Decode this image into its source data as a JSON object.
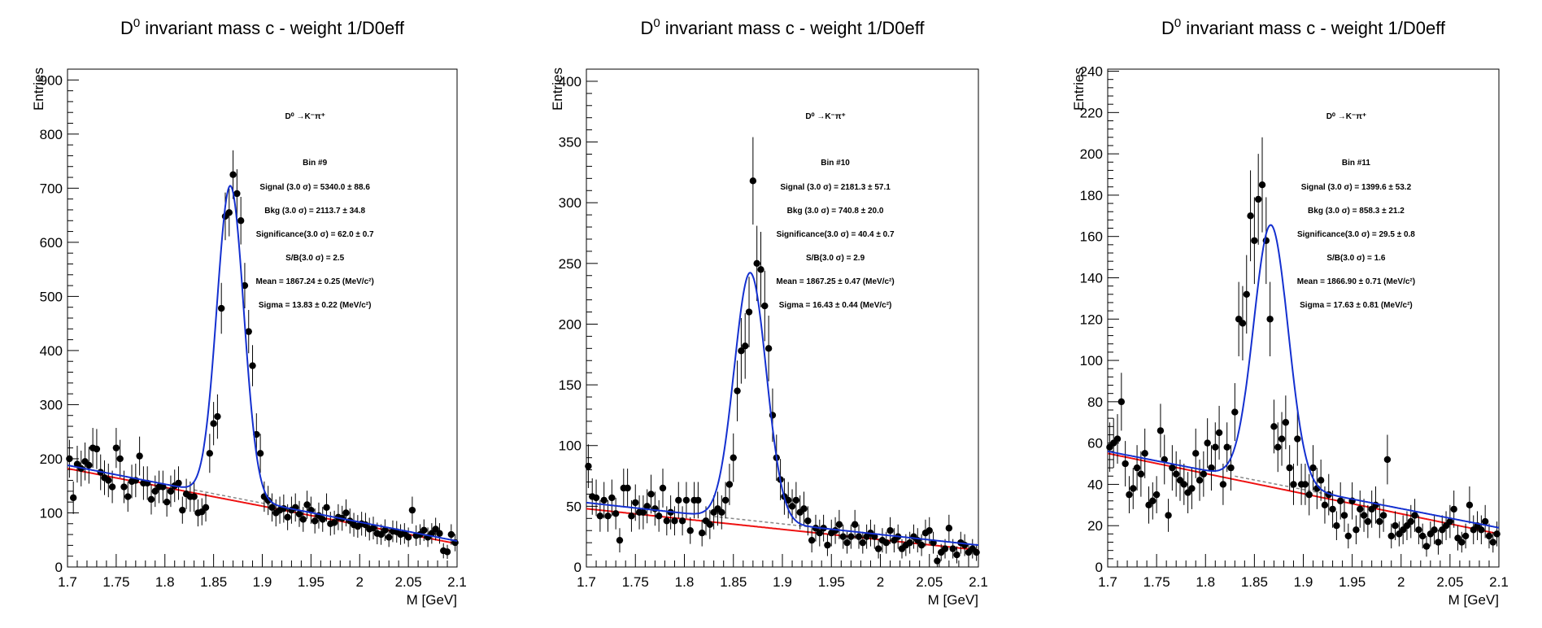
{
  "chart_data": [
    {
      "type": "scatter",
      "title": "D0 invariant mass c - weight 1/D0eff",
      "title_parts": {
        "base": "D",
        "sup": "0",
        "rest": " invariant mass c - weight 1/D0eff"
      },
      "xlabel": "M [GeV]",
      "ylabel": "Entries",
      "xlim": [
        1.7,
        2.1
      ],
      "ylim": [
        0,
        920
      ],
      "xticks": [
        1.7,
        1.75,
        1.8,
        1.85,
        1.9,
        1.95,
        2.0,
        2.05,
        2.1
      ],
      "xtick_labels": [
        "1.7",
        "1.75",
        "1.8",
        "1.85",
        "1.9",
        "1.95",
        "2",
        "2.05",
        "2.1"
      ],
      "yticks": [
        0,
        100,
        200,
        300,
        400,
        500,
        600,
        700,
        800,
        900
      ],
      "ytick_labels": [
        "0",
        "100",
        "200",
        "300",
        "400",
        "500",
        "600",
        "700",
        "800",
        "900"
      ],
      "annotations": {
        "decay": "D⁰ →K⁻π⁺",
        "bin": "Bin #9",
        "signal": "Signal (3.0 σ) =  5340.0 ± 88.6",
        "bkg": "Bkg (3.0 σ) =  2113.7 ± 34.8",
        "significance": "Significance(3.0 σ) =  62.0 ± 0.7",
        "sb": "S/B(3.0 σ) =  2.5",
        "mean": "Mean = 1867.24 ± 0.25 (MeV/c²)",
        "sigma": "Sigma = 13.83 ± 0.22 (MeV/c²)"
      },
      "fit": {
        "mean": 1.86724,
        "sigma": 0.01383,
        "amp": 575,
        "bkg_a": 182,
        "bkg_b": 43,
        "bkg_full_a": 188,
        "bkg_full_b": 48
      },
      "x": [
        1.702,
        1.706,
        1.71,
        1.714,
        1.718,
        1.722,
        1.726,
        1.73,
        1.734,
        1.738,
        1.742,
        1.746,
        1.75,
        1.754,
        1.758,
        1.762,
        1.766,
        1.77,
        1.774,
        1.778,
        1.782,
        1.786,
        1.79,
        1.794,
        1.798,
        1.802,
        1.806,
        1.81,
        1.814,
        1.818,
        1.822,
        1.826,
        1.83,
        1.834,
        1.838,
        1.842,
        1.846,
        1.85,
        1.854,
        1.858,
        1.862,
        1.866,
        1.87,
        1.874,
        1.878,
        1.882,
        1.886,
        1.89,
        1.894,
        1.898,
        1.902,
        1.906,
        1.91,
        1.914,
        1.918,
        1.922,
        1.926,
        1.93,
        1.934,
        1.938,
        1.942,
        1.946,
        1.95,
        1.954,
        1.958,
        1.962,
        1.966,
        1.97,
        1.974,
        1.978,
        1.982,
        1.986,
        1.99,
        1.994,
        1.998,
        2.002,
        2.006,
        2.01,
        2.014,
        2.018,
        2.022,
        2.026,
        2.03,
        2.034,
        2.038,
        2.042,
        2.046,
        2.05,
        2.054,
        2.058,
        2.062,
        2.066,
        2.07,
        2.074,
        2.078,
        2.082,
        2.086,
        2.09,
        2.094,
        2.098
      ],
      "y": [
        200,
        128,
        190,
        182,
        195,
        188,
        220,
        218,
        175,
        165,
        160,
        148,
        220,
        200,
        148,
        130,
        158,
        160,
        205,
        155,
        155,
        125,
        140,
        148,
        148,
        120,
        140,
        150,
        155,
        105,
        135,
        130,
        130,
        100,
        102,
        110,
        210,
        265,
        278,
        478,
        648,
        655,
        725,
        690,
        640,
        520,
        435,
        372,
        245,
        210,
        130,
        123,
        110,
        100,
        105,
        108,
        92,
        105,
        110,
        98,
        88,
        115,
        105,
        85,
        95,
        88,
        110,
        80,
        82,
        92,
        90,
        100,
        85,
        78,
        75,
        80,
        78,
        70,
        72,
        62,
        60,
        68,
        55,
        66,
        65,
        60,
        62,
        55,
        105,
        58,
        60,
        68,
        55,
        62,
        70,
        62,
        30,
        28,
        60,
        45
      ],
      "yerr": [
        35,
        30,
        34,
        33,
        35,
        34,
        37,
        37,
        33,
        32,
        31,
        30,
        37,
        35,
        30,
        28,
        31,
        31,
        36,
        31,
        31,
        28,
        29,
        30,
        30,
        27,
        29,
        30,
        31,
        25,
        28,
        28,
        28,
        25,
        25,
        26,
        36,
        40,
        41,
        47,
        44,
        44,
        45,
        45,
        44,
        42,
        40,
        38,
        39,
        36,
        28,
        27,
        26,
        25,
        25,
        26,
        24,
        25,
        26,
        24,
        23,
        26,
        25,
        23,
        24,
        23,
        26,
        22,
        22,
        24,
        23,
        25,
        23,
        22,
        21,
        22,
        22,
        21,
        21,
        20,
        19,
        20,
        18,
        20,
        20,
        19,
        19,
        18,
        25,
        19,
        19,
        20,
        18,
        19,
        21,
        19,
        14,
        13,
        19,
        16
      ]
    },
    {
      "type": "scatter",
      "title": "D0 invariant mass c - weight 1/D0eff",
      "title_parts": {
        "base": "D",
        "sup": "0",
        "rest": " invariant mass c - weight 1/D0eff"
      },
      "xlabel": "M [GeV]",
      "ylabel": "Entries",
      "xlim": [
        1.7,
        2.1
      ],
      "ylim": [
        0,
        410
      ],
      "xticks": [
        1.7,
        1.75,
        1.8,
        1.85,
        1.9,
        1.95,
        2.0,
        2.05,
        2.1
      ],
      "xtick_labels": [
        "1.7",
        "1.75",
        "1.8",
        "1.85",
        "1.9",
        "1.95",
        "2",
        "2.05",
        "2.1"
      ],
      "yticks": [
        0,
        50,
        100,
        150,
        200,
        250,
        300,
        350,
        400
      ],
      "ytick_labels": [
        "0",
        "50",
        "100",
        "150",
        "200",
        "250",
        "300",
        "350",
        "400"
      ],
      "annotations": {
        "decay": "D⁰ →K⁻π⁺",
        "bin": "Bin #10",
        "signal": "Signal (3.0 σ) =  2181.3 ± 57.1",
        "bkg": "Bkg (3.0 σ) =  740.8 ± 20.0",
        "significance": "Significance(3.0 σ) =  40.4 ± 0.7",
        "sb": "S/B(3.0 σ) =  2.9",
        "mean": "Mean = 1867.25 ± 0.47 (MeV/c²)",
        "sigma": "Sigma = 16.43 ± 0.44 (MeV/c²)"
      },
      "fit": {
        "mean": 1.86725,
        "sigma": 0.01643,
        "amp": 204,
        "bkg_a": 48,
        "bkg_b": 14,
        "bkg_full_a": 53,
        "bkg_full_b": 18
      },
      "x": [
        1.702,
        1.706,
        1.71,
        1.714,
        1.718,
        1.722,
        1.726,
        1.73,
        1.734,
        1.738,
        1.742,
        1.746,
        1.75,
        1.754,
        1.758,
        1.762,
        1.766,
        1.77,
        1.774,
        1.778,
        1.782,
        1.786,
        1.79,
        1.794,
        1.798,
        1.802,
        1.806,
        1.81,
        1.814,
        1.818,
        1.822,
        1.826,
        1.83,
        1.834,
        1.838,
        1.842,
        1.846,
        1.85,
        1.854,
        1.858,
        1.862,
        1.866,
        1.87,
        1.874,
        1.878,
        1.882,
        1.886,
        1.89,
        1.894,
        1.898,
        1.902,
        1.906,
        1.91,
        1.914,
        1.918,
        1.922,
        1.926,
        1.93,
        1.934,
        1.938,
        1.942,
        1.946,
        1.95,
        1.954,
        1.958,
        1.962,
        1.966,
        1.97,
        1.974,
        1.978,
        1.982,
        1.986,
        1.99,
        1.994,
        1.998,
        2.002,
        2.006,
        2.01,
        2.014,
        2.018,
        2.022,
        2.026,
        2.03,
        2.034,
        2.038,
        2.042,
        2.046,
        2.05,
        2.054,
        2.058,
        2.062,
        2.066,
        2.07,
        2.074,
        2.078,
        2.082,
        2.086,
        2.09,
        2.094,
        2.098
      ],
      "y": [
        83,
        58,
        57,
        42,
        55,
        42,
        57,
        44,
        22,
        65,
        65,
        42,
        53,
        45,
        45,
        50,
        60,
        48,
        42,
        65,
        38,
        45,
        38,
        55,
        38,
        55,
        30,
        55,
        55,
        28,
        38,
        35,
        45,
        48,
        45,
        55,
        68,
        90,
        145,
        178,
        182,
        210,
        318,
        250,
        245,
        215,
        180,
        125,
        90,
        72,
        58,
        55,
        50,
        55,
        45,
        48,
        38,
        22,
        32,
        28,
        32,
        18,
        28,
        30,
        35,
        25,
        20,
        25,
        35,
        25,
        20,
        25,
        28,
        25,
        15,
        22,
        20,
        30,
        22,
        25,
        15,
        18,
        20,
        25,
        22,
        18,
        28,
        30,
        20,
        5,
        12,
        15,
        32,
        15,
        10,
        20,
        18,
        12,
        15,
        12
      ],
      "yerr": [
        18,
        15,
        15,
        13,
        15,
        13,
        15,
        13,
        10,
        16,
        16,
        13,
        15,
        14,
        14,
        14,
        16,
        14,
        13,
        16,
        12,
        14,
        12,
        15,
        12,
        15,
        11,
        15,
        15,
        11,
        12,
        12,
        14,
        14,
        14,
        15,
        17,
        20,
        25,
        27,
        27,
        29,
        36,
        31,
        31,
        29,
        27,
        22,
        19,
        17,
        15,
        15,
        14,
        15,
        14,
        14,
        12,
        10,
        11,
        11,
        11,
        9,
        11,
        11,
        12,
        10,
        9,
        10,
        12,
        10,
        9,
        10,
        11,
        10,
        8,
        10,
        9,
        11,
        10,
        10,
        8,
        9,
        9,
        10,
        10,
        9,
        11,
        11,
        9,
        5,
        7,
        8,
        11,
        8,
        7,
        9,
        9,
        7,
        8,
        7
      ]
    },
    {
      "type": "scatter",
      "title": "D0 invariant mass c - weight 1/D0eff",
      "title_parts": {
        "base": "D",
        "sup": "0",
        "rest": " invariant mass c - weight 1/D0eff"
      },
      "xlabel": "M [GeV]",
      "ylabel": "Entries",
      "xlim": [
        1.7,
        2.1
      ],
      "ylim": [
        0,
        241
      ],
      "xticks": [
        1.7,
        1.75,
        1.8,
        1.85,
        1.9,
        1.95,
        2.0,
        2.05,
        2.1
      ],
      "xtick_labels": [
        "1.7",
        "1.75",
        "1.8",
        "1.85",
        "1.9",
        "1.95",
        "2",
        "2.05",
        "2.1"
      ],
      "yticks": [
        0,
        20,
        40,
        60,
        80,
        100,
        120,
        140,
        160,
        180,
        200,
        220,
        240
      ],
      "ytick_labels": [
        "0",
        "20",
        "40",
        "60",
        "80",
        "100",
        "120",
        "140",
        "160",
        "180",
        "200",
        "220",
        "240"
      ],
      "annotations": {
        "decay": "D⁰ →K⁻π⁺",
        "bin": "Bin #11",
        "signal": "Signal (3.0 σ) =  1399.6 ± 53.2",
        "bkg": "Bkg (3.0 σ) =  858.3 ± 21.2",
        "significance": "Significance(3.0 σ) =  29.5 ± 0.8",
        "sb": "S/B(3.0 σ) =  1.6",
        "mean": "Mean = 1866.90 ± 0.71 (MeV/c²)",
        "sigma": "Sigma = 17.63 ± 0.81 (MeV/c²)"
      },
      "fit": {
        "mean": 1.8669,
        "sigma": 0.01763,
        "amp": 125,
        "bkg_a": 55,
        "bkg_b": 16,
        "bkg_full_a": 56,
        "bkg_full_b": 19
      },
      "x": [
        1.702,
        1.706,
        1.71,
        1.714,
        1.718,
        1.722,
        1.726,
        1.73,
        1.734,
        1.738,
        1.742,
        1.746,
        1.75,
        1.754,
        1.758,
        1.762,
        1.766,
        1.77,
        1.774,
        1.778,
        1.782,
        1.786,
        1.79,
        1.794,
        1.798,
        1.802,
        1.806,
        1.81,
        1.814,
        1.818,
        1.822,
        1.826,
        1.83,
        1.834,
        1.838,
        1.842,
        1.846,
        1.85,
        1.854,
        1.858,
        1.862,
        1.866,
        1.87,
        1.874,
        1.878,
        1.882,
        1.886,
        1.89,
        1.894,
        1.898,
        1.902,
        1.906,
        1.91,
        1.914,
        1.918,
        1.922,
        1.926,
        1.93,
        1.934,
        1.938,
        1.942,
        1.946,
        1.95,
        1.954,
        1.958,
        1.962,
        1.966,
        1.97,
        1.974,
        1.978,
        1.982,
        1.986,
        1.99,
        1.994,
        1.998,
        2.002,
        2.006,
        2.01,
        2.014,
        2.018,
        2.022,
        2.026,
        2.03,
        2.034,
        2.038,
        2.042,
        2.046,
        2.05,
        2.054,
        2.058,
        2.062,
        2.066,
        2.07,
        2.074,
        2.078,
        2.082,
        2.086,
        2.09,
        2.094,
        2.098
      ],
      "y": [
        58,
        60,
        62,
        80,
        50,
        35,
        38,
        48,
        45,
        55,
        30,
        32,
        35,
        66,
        52,
        25,
        48,
        45,
        42,
        40,
        36,
        38,
        55,
        42,
        45,
        60,
        48,
        58,
        65,
        40,
        58,
        48,
        75,
        120,
        118,
        132,
        170,
        158,
        178,
        185,
        158,
        120,
        68,
        58,
        62,
        70,
        48,
        40,
        62,
        40,
        40,
        35,
        48,
        38,
        42,
        30,
        35,
        28,
        20,
        32,
        25,
        15,
        32,
        18,
        28,
        25,
        22,
        28,
        30,
        22,
        25,
        52,
        15,
        20,
        16,
        18,
        20,
        22,
        25,
        18,
        15,
        10,
        16,
        18,
        12,
        18,
        20,
        22,
        28,
        14,
        12,
        15,
        30,
        18,
        20,
        18,
        22,
        15,
        12,
        16
      ],
      "yerr": [
        12,
        12,
        12,
        14,
        11,
        9,
        10,
        11,
        11,
        12,
        9,
        9,
        9,
        13,
        12,
        8,
        11,
        11,
        10,
        10,
        10,
        10,
        12,
        10,
        11,
        12,
        11,
        12,
        13,
        10,
        12,
        11,
        14,
        18,
        18,
        19,
        22,
        21,
        22,
        23,
        21,
        18,
        13,
        12,
        13,
        13,
        11,
        10,
        13,
        10,
        10,
        10,
        11,
        10,
        10,
        9,
        10,
        9,
        7,
        9,
        8,
        6,
        9,
        7,
        9,
        8,
        8,
        9,
        9,
        8,
        8,
        12,
        6,
        7,
        6,
        7,
        7,
        8,
        8,
        7,
        6,
        5,
        6,
        7,
        6,
        7,
        7,
        8,
        9,
        6,
        5,
        6,
        9,
        7,
        7,
        7,
        8,
        6,
        5,
        6
      ]
    }
  ]
}
